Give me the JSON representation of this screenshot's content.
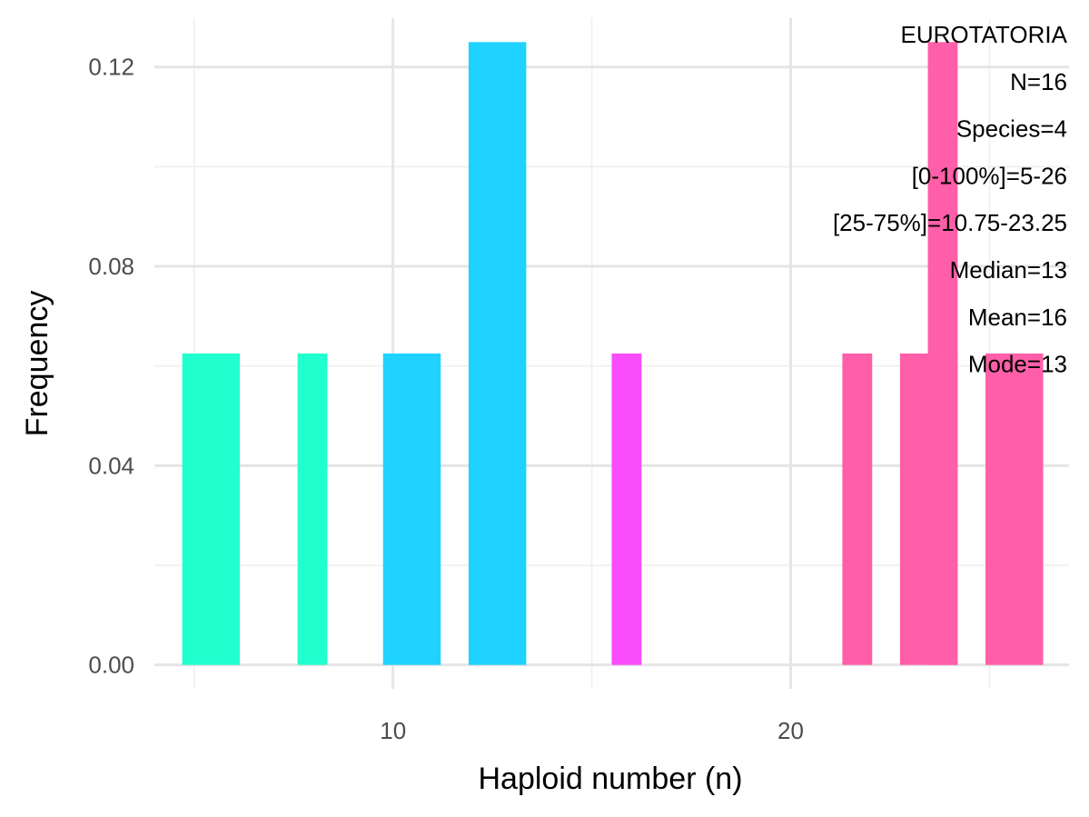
{
  "chart_data": {
    "type": "bar",
    "xlabel": "Haploid number (n)",
    "ylabel": "Frequency",
    "xlim": [
      4.0,
      27.0
    ],
    "ylim": [
      -0.0048,
      0.1298
    ],
    "x_ticks": [
      10,
      20
    ],
    "x_tick_labels": [
      "10",
      "20"
    ],
    "x_minor_ticks": [
      5,
      15,
      25
    ],
    "y_ticks": [
      0.0,
      0.04,
      0.08,
      0.12
    ],
    "y_tick_labels": [
      "0.00",
      "0.04",
      "0.08",
      "0.12"
    ],
    "y_minor_ticks": [
      0.02,
      0.06,
      0.1
    ],
    "grid": true,
    "bars": [
      {
        "x0": 4.7,
        "x1": 6.15,
        "value": 0.0625,
        "color": "#21FFCF"
      },
      {
        "x0": 7.6,
        "x1": 8.35,
        "value": 0.0625,
        "color": "#21FFCF"
      },
      {
        "x0": 9.75,
        "x1": 11.2,
        "value": 0.0625,
        "color": "#1FD2FF"
      },
      {
        "x0": 11.9,
        "x1": 13.35,
        "value": 0.125,
        "color": "#1FD2FF"
      },
      {
        "x0": 15.5,
        "x1": 16.25,
        "value": 0.0625,
        "color": "#F94CFA"
      },
      {
        "x0": 21.3,
        "x1": 22.05,
        "value": 0.0625,
        "color": "#FF5EA8"
      },
      {
        "x0": 22.75,
        "x1": 24.2,
        "value": 0.0625,
        "color": "#FF5EA8"
      },
      {
        "x0": 23.45,
        "x1": 24.2,
        "value": 0.125,
        "color": "#FF5EA8"
      },
      {
        "x0": 24.9,
        "x1": 26.35,
        "value": 0.0625,
        "color": "#FF5EA8"
      }
    ],
    "annotations": [
      "EUROTATORIA",
      "N=16",
      "Species=4",
      "[0-100%]=5-26",
      "[25-75%]=10.75-23.25",
      "Median=13",
      "Mean=16",
      "Mode=13"
    ],
    "colors": {
      "grid_major": "#E5E5E5",
      "grid_minor": "#EFEFEF",
      "tick_text": "#4D4D4D"
    }
  }
}
